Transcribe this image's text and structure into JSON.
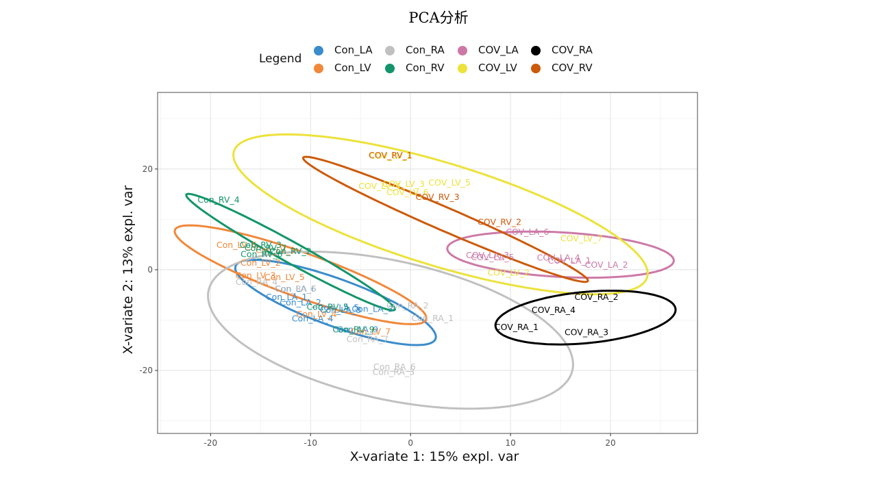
{
  "title": "PCA分析",
  "legend": {
    "title": "Legend",
    "entries": [
      {
        "name": "Con_LA",
        "color": "#3a8ccb"
      },
      {
        "name": "Con_LV",
        "color": "#f0883a"
      },
      {
        "name": "Con_RA",
        "color": "#c0c0c0"
      },
      {
        "name": "Con_RV",
        "color": "#12956a"
      },
      {
        "name": "COV_LA",
        "color": "#cc79a7"
      },
      {
        "name": "COV_LV",
        "color": "#ece23a"
      },
      {
        "name": "COV_RA",
        "color": "#000000"
      },
      {
        "name": "COV_RV",
        "color": "#cc5a0a"
      }
    ]
  },
  "chart_data": {
    "type": "scatter",
    "title": "PCA分析",
    "xlabel": "X-variate 1: 15% expl. var",
    "ylabel": "X-variate 2: 13% expl. var",
    "xlim": [
      -25.3,
      28.7
    ],
    "ylim": [
      -32.5,
      35.2
    ],
    "xticks": [
      -20,
      -10,
      0,
      10,
      20
    ],
    "yticks": [
      -20,
      0,
      20
    ],
    "grid": true,
    "points": [
      {
        "label": "Con_LA_6",
        "group": "Con_LA",
        "x": -11.5,
        "y": -3.9
      },
      {
        "label": "Con_LA_1",
        "group": "Con_LA",
        "x": -12.4,
        "y": -5.5
      },
      {
        "label": "Con_LA_2",
        "group": "Con_LA",
        "x": -11.0,
        "y": -6.6
      },
      {
        "label": "Con_LA_4",
        "group": "Con_LA",
        "x": -9.8,
        "y": -9.8
      },
      {
        "label": "Con_LA_5",
        "group": "Con_LA",
        "x": -7.2,
        "y": -7.6
      },
      {
        "label": "Con_LA_3",
        "group": "Con_LA",
        "x": -3.8,
        "y": -7.9
      },
      {
        "label": "Con_LA_9",
        "group": "Con_LA",
        "x": -5.3,
        "y": -12.0
      },
      {
        "label": "Con_LA_8",
        "group": "Con_LA",
        "x": -7.0,
        "y": -8.1
      },
      {
        "label": "Con_LV_1",
        "group": "Con_LV",
        "x": -13.5,
        "y": 3.8
      },
      {
        "label": "Con_LV_6",
        "group": "Con_LV",
        "x": -17.4,
        "y": 4.8
      },
      {
        "label": "Con_LV_2",
        "group": "Con_LV",
        "x": -15.0,
        "y": 1.3
      },
      {
        "label": "Con_LV_3",
        "group": "Con_LV",
        "x": -15.5,
        "y": -1.2
      },
      {
        "label": "Con_LV_5",
        "group": "Con_LV",
        "x": -12.6,
        "y": -1.6
      },
      {
        "label": "Con_LV_4",
        "group": "Con_LV",
        "x": -9.4,
        "y": -8.9
      },
      {
        "label": "Con_LV_7",
        "group": "Con_LV",
        "x": -4.0,
        "y": -12.4
      },
      {
        "label": "Con_RA_2",
        "group": "Con_RA",
        "x": -0.3,
        "y": -7.2
      },
      {
        "label": "Con_RA_1",
        "group": "Con_RA",
        "x": 2.2,
        "y": -9.7
      },
      {
        "label": "Con_RA_4",
        "group": "Con_RA",
        "x": -15.4,
        "y": -2.5
      },
      {
        "label": "Con_RA_5",
        "group": "Con_RA",
        "x": -11.5,
        "y": -3.9
      },
      {
        "label": "Con_RA_7",
        "group": "Con_RA",
        "x": -4.3,
        "y": -13.9
      },
      {
        "label": "Con_RA_6",
        "group": "Con_RA",
        "x": -1.6,
        "y": -19.4
      },
      {
        "label": "Con_RA_3",
        "group": "Con_RA",
        "x": -1.7,
        "y": -20.4
      },
      {
        "label": "Con_RV_4",
        "group": "Con_RV",
        "x": -19.2,
        "y": 13.8
      },
      {
        "label": "Con_RV_3",
        "group": "Con_RV",
        "x": -15.0,
        "y": 4.8
      },
      {
        "label": "Con_RV_7",
        "group": "Con_RV",
        "x": -14.5,
        "y": 4.2
      },
      {
        "label": "Con_RV_2",
        "group": "Con_RV",
        "x": -12.0,
        "y": 3.6
      },
      {
        "label": "Con_RV_6",
        "group": "Con_RV",
        "x": -14.9,
        "y": 3.0
      },
      {
        "label": "Con_RV_5",
        "group": "Con_RV",
        "x": -8.3,
        "y": -7.5
      },
      {
        "label": "Con_RV_9",
        "group": "Con_RV",
        "x": -5.7,
        "y": -12.0
      },
      {
        "label": "COV_LA_6",
        "group": "COV_LA",
        "x": 11.7,
        "y": 7.4
      },
      {
        "label": "COV_LA_3",
        "group": "COV_LA",
        "x": 7.7,
        "y": 2.8
      },
      {
        "label": "COV_LA_5",
        "group": "COV_LA",
        "x": 8.2,
        "y": 2.4
      },
      {
        "label": "COV_LA_4",
        "group": "COV_LA",
        "x": 14.8,
        "y": 2.3
      },
      {
        "label": "COV_LA_1",
        "group": "COV_LA",
        "x": 15.9,
        "y": 1.7
      },
      {
        "label": "COV_LA_2",
        "group": "COV_LA",
        "x": 19.6,
        "y": 0.9
      },
      {
        "label": "COV_LV_1",
        "group": "COV_LV",
        "x": -2.0,
        "y": 22.5
      },
      {
        "label": "COV_LV_3",
        "group": "COV_LV",
        "x": -0.7,
        "y": 16.9
      },
      {
        "label": "COV_LV_4",
        "group": "COV_LV",
        "x": -3.1,
        "y": 16.5
      },
      {
        "label": "COV_LV_6",
        "group": "COV_LV",
        "x": -0.3,
        "y": 15.3
      },
      {
        "label": "COV_LV_5",
        "group": "COV_LV",
        "x": 3.9,
        "y": 17.2
      },
      {
        "label": "COV_LV_7",
        "group": "COV_LV",
        "x": 17.1,
        "y": 6.1
      },
      {
        "label": "COV_LV_2",
        "group": "COV_LV",
        "x": 9.8,
        "y": -0.7
      },
      {
        "label": "COV_RA_2",
        "group": "COV_RA",
        "x": 18.6,
        "y": -5.5
      },
      {
        "label": "COV_RA_4",
        "group": "COV_RA",
        "x": 14.3,
        "y": -8.1
      },
      {
        "label": "COV_RA_1",
        "group": "COV_RA",
        "x": 10.6,
        "y": -11.5
      },
      {
        "label": "COV_RA_3",
        "group": "COV_RA",
        "x": 17.6,
        "y": -12.5
      },
      {
        "label": "COV_RV_1",
        "group": "COV_RV",
        "x": -2.0,
        "y": 22.6
      },
      {
        "label": "COV_RV_3",
        "group": "COV_RV",
        "x": 2.7,
        "y": 14.3
      },
      {
        "label": "COV_RV_2",
        "group": "COV_RV",
        "x": 8.9,
        "y": 9.4
      }
    ],
    "ellipses": [
      {
        "group": "Con_LA",
        "cx": -7.5,
        "cy": -6.5,
        "a": 12.5,
        "b": 4.0,
        "angle_deg": -39
      },
      {
        "group": "Con_LV",
        "cx": -11.0,
        "cy": -1.0,
        "a": 15.5,
        "b": 3.8,
        "angle_deg": -37
      },
      {
        "group": "Con_RA",
        "cx": -2.0,
        "cy": -12.0,
        "a": 20.5,
        "b": 12.5,
        "angle_deg": -35
      },
      {
        "group": "Con_RV",
        "cx": -12.0,
        "cy": 3.5,
        "a": 15.5,
        "b": 1.6,
        "angle_deg": -48
      },
      {
        "group": "COV_LA",
        "cx": 15.0,
        "cy": 3.0,
        "a": 11.4,
        "b": 4.4,
        "angle_deg": -7
      },
      {
        "group": "COV_LV",
        "cx": 3.0,
        "cy": 11.0,
        "a": 24.5,
        "b": 9.0,
        "angle_deg": -35
      },
      {
        "group": "COV_RA",
        "cx": 17.5,
        "cy": -9.5,
        "a": 9.2,
        "b": 5.0,
        "angle_deg": 14
      },
      {
        "group": "COV_RV",
        "cx": 3.5,
        "cy": 10.0,
        "a": 18.8,
        "b": 1.9,
        "angle_deg": -41
      }
    ]
  }
}
